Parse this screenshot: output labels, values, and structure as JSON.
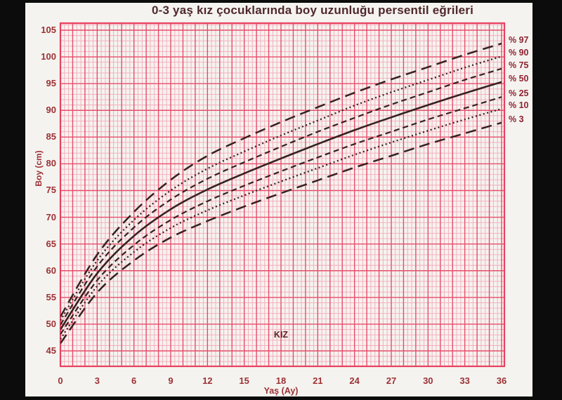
{
  "colors": {
    "frame_black": "#0c0c0c",
    "paper": "#f5f3ef",
    "grid_minor": "#f3aabb",
    "grid_major": "#e84d6b",
    "plot_border": "#e8415f",
    "curve": "#35221f",
    "title_text": "#4f272b",
    "tick_text": "#9c3136",
    "percentile_label_text": "#8e2331",
    "inner_label_text": "#5d2427"
  },
  "chart_data": {
    "type": "line",
    "title": "0-3 yaş kız çocuklarında boy uzunluğu persentil eğrileri",
    "xlabel": "Yaş (Ay)",
    "ylabel": "Boy (cm)",
    "inner_label": "KIZ",
    "x": [
      0,
      3,
      6,
      9,
      12,
      15,
      18,
      21,
      24,
      27,
      30,
      33,
      36
    ],
    "x_tick_labels": [
      "0",
      "3",
      "6",
      "9",
      "12",
      "15",
      "18",
      "21",
      "24",
      "27",
      "30",
      "33",
      "36"
    ],
    "y_ticks": [
      45,
      50,
      55,
      60,
      65,
      70,
      75,
      80,
      85,
      90,
      95,
      100,
      105
    ],
    "xlim": [
      0,
      36
    ],
    "ylim": [
      42,
      106
    ],
    "grid": "pink graph paper: minor lines every 1 cm and 1/3 month, major lines every 5 cm and 1 month",
    "legend_position": "labels at right edge of curves",
    "series": [
      {
        "name": "% 97",
        "percentile": 97,
        "style": "long-dash",
        "values": [
          51.4,
          63.0,
          71.0,
          77.0,
          81.5,
          84.8,
          87.8,
          90.6,
          93.3,
          95.8,
          98.1,
          100.4,
          102.5
        ]
      },
      {
        "name": "% 90",
        "percentile": 90,
        "style": "dotted",
        "values": [
          50.7,
          61.9,
          69.5,
          75.0,
          79.1,
          82.3,
          85.3,
          88.1,
          90.9,
          93.4,
          95.7,
          98.0,
          100.1
        ]
      },
      {
        "name": "% 75",
        "percentile": 75,
        "style": "dash",
        "values": [
          49.9,
          60.8,
          68.1,
          73.3,
          77.2,
          80.3,
          83.2,
          86.0,
          88.6,
          91.1,
          93.4,
          95.7,
          97.8
        ]
      },
      {
        "name": "% 50",
        "percentile": 50,
        "style": "solid",
        "values": [
          49.0,
          59.5,
          66.5,
          71.5,
          75.2,
          78.2,
          81.0,
          83.7,
          86.3,
          88.7,
          91.0,
          93.2,
          95.3
        ]
      },
      {
        "name": "% 25",
        "percentile": 25,
        "style": "dash",
        "values": [
          48.1,
          58.2,
          64.8,
          69.5,
          73.0,
          75.9,
          78.6,
          81.2,
          83.7,
          86.0,
          88.3,
          90.4,
          92.5
        ]
      },
      {
        "name": "% 10",
        "percentile": 10,
        "style": "dotted",
        "values": [
          47.2,
          57.1,
          63.5,
          68.0,
          71.3,
          74.1,
          76.7,
          79.2,
          81.7,
          84.0,
          86.2,
          88.3,
          90.3
        ]
      },
      {
        "name": "% 3",
        "percentile": 3,
        "style": "long-dash",
        "values": [
          46.4,
          55.9,
          61.9,
          66.2,
          69.3,
          72.0,
          74.5,
          76.9,
          79.3,
          81.5,
          83.7,
          85.7,
          87.7
        ]
      }
    ]
  }
}
